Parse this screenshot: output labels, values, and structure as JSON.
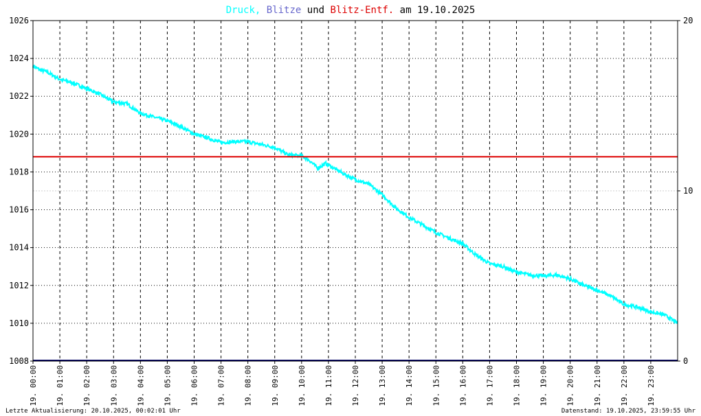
{
  "colors": {
    "druck": "#00ffff",
    "blitze": "#6666cc",
    "blitz_entf": "#dd0000",
    "plain": "#000000",
    "grid": "#000000",
    "baseline": "#000066",
    "right_axis_text": "#000000",
    "right_axis_mid": "#dd0000"
  },
  "title": {
    "part1": "Druck,",
    "part2": "Blitze",
    "part3": "und",
    "part4": "Blitz-Entf.",
    "part5": "am 19.10.2025"
  },
  "footer": {
    "left": "Letzte Aktualisierung: 20.10.2025, 00:02:01 Uhr",
    "right": "Datenstand: 19.10.2025, 23:59:55 Uhr"
  },
  "chart_data": {
    "type": "line",
    "title": "Druck, Blitze und Blitz-Entf. am 19.10.2025",
    "x_ticks": [
      "19. 00:00",
      "19. 01:00",
      "19. 02:00",
      "19. 03:00",
      "19. 04:00",
      "19. 05:00",
      "19. 06:00",
      "19. 07:00",
      "19. 08:00",
      "19. 09:00",
      "19. 10:00",
      "19. 11:00",
      "19. 12:00",
      "19. 13:00",
      "19. 14:00",
      "19. 15:00",
      "19. 16:00",
      "19. 17:00",
      "19. 18:00",
      "19. 19:00",
      "19. 20:00",
      "19. 21:00",
      "19. 22:00",
      "19. 23:00"
    ],
    "x_range_hours": [
      0,
      24
    ],
    "y_left": {
      "range": [
        1008,
        1026
      ],
      "ticks": [
        "1008",
        "1010",
        "1012",
        "1014",
        "1016",
        "1018",
        "1020",
        "1022",
        "1024",
        "1026"
      ]
    },
    "y_right": {
      "range": [
        0,
        20
      ],
      "ticks": [
        "0",
        "10",
        "20"
      ]
    },
    "grid": true,
    "series": [
      {
        "name": "Druck",
        "axis": "left",
        "x_hours": [
          0,
          0.25,
          0.5,
          1.0,
          1.5,
          2.0,
          2.5,
          3.0,
          3.5,
          4.0,
          4.5,
          5.0,
          5.5,
          6.0,
          6.5,
          7.0,
          7.5,
          8.0,
          8.5,
          9.0,
          9.5,
          10.0,
          10.3,
          10.6,
          10.9,
          11.2,
          11.5,
          12.0,
          12.5,
          13.0,
          13.5,
          14.0,
          14.5,
          15.0,
          15.5,
          16.0,
          16.5,
          17.0,
          17.5,
          18.0,
          18.5,
          19.0,
          19.5,
          20.0,
          20.5,
          21.0,
          21.5,
          22.0,
          22.5,
          23.0,
          23.5,
          24.0
        ],
        "values": [
          1023.6,
          1023.4,
          1023.3,
          1022.9,
          1022.7,
          1022.4,
          1022.1,
          1021.7,
          1021.6,
          1021.1,
          1020.9,
          1020.7,
          1020.4,
          1020.0,
          1019.8,
          1019.55,
          1019.6,
          1019.6,
          1019.45,
          1019.3,
          1018.9,
          1018.85,
          1018.6,
          1018.2,
          1018.45,
          1018.2,
          1017.95,
          1017.6,
          1017.35,
          1016.8,
          1016.1,
          1015.6,
          1015.2,
          1014.8,
          1014.5,
          1014.2,
          1013.6,
          1013.15,
          1013.0,
          1012.7,
          1012.55,
          1012.5,
          1012.55,
          1012.35,
          1012.0,
          1011.75,
          1011.45,
          1011.0,
          1010.85,
          1010.6,
          1010.45,
          1010.0
        ]
      },
      {
        "name": "Blitze",
        "axis": "right",
        "x_hours": [
          0,
          24
        ],
        "values": [
          0,
          0
        ]
      },
      {
        "name": "Blitz-Entf.",
        "axis": "right",
        "x_hours": [
          0,
          24
        ],
        "values": [
          12,
          12
        ]
      }
    ]
  }
}
